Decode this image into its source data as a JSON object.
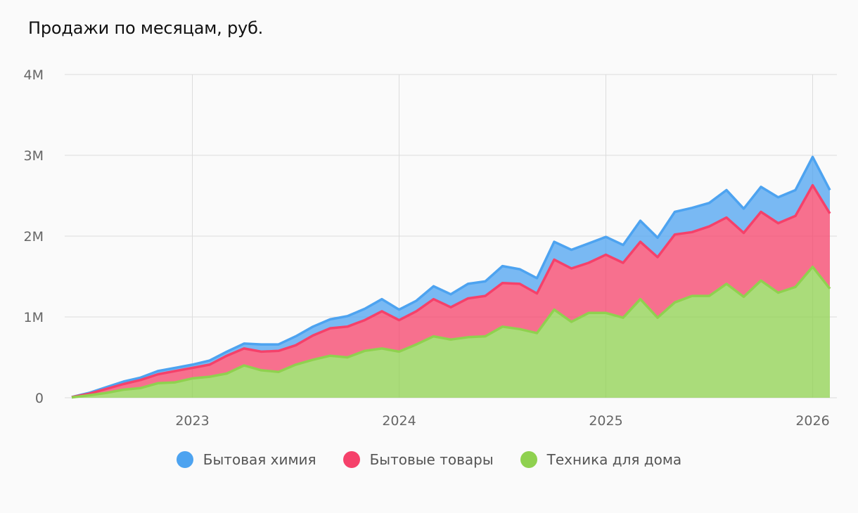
{
  "chart_data": {
    "type": "area",
    "stacked": true,
    "title": "Продажи по месяцам, руб.",
    "xlabel": "",
    "ylabel": "",
    "ylim": [
      0,
      4000000
    ],
    "yticks": [
      {
        "value": 0,
        "label": "0"
      },
      {
        "value": 1000000,
        "label": "1M"
      },
      {
        "value": 2000000,
        "label": "2M"
      },
      {
        "value": 3000000,
        "label": "3M"
      },
      {
        "value": 4000000,
        "label": "4M"
      }
    ],
    "xlim": [
      "2022-06",
      "2026-02"
    ],
    "xticks": [
      {
        "value": "2023-01",
        "label": "2023"
      },
      {
        "value": "2024-01",
        "label": "2024"
      },
      {
        "value": "2025-01",
        "label": "2025"
      },
      {
        "value": "2026-01",
        "label": "2026"
      }
    ],
    "grid": true,
    "legend_position": "bottom",
    "x": [
      "2022-06",
      "2022-07",
      "2022-08",
      "2022-09",
      "2022-10",
      "2022-11",
      "2022-12",
      "2023-01",
      "2023-02",
      "2023-03",
      "2023-04",
      "2023-05",
      "2023-06",
      "2023-07",
      "2023-08",
      "2023-09",
      "2023-10",
      "2023-11",
      "2023-12",
      "2024-01",
      "2024-02",
      "2024-03",
      "2024-04",
      "2024-05",
      "2024-06",
      "2024-07",
      "2024-08",
      "2024-09",
      "2024-10",
      "2024-11",
      "2024-12",
      "2025-01",
      "2025-02",
      "2025-03",
      "2025-04",
      "2025-05",
      "2025-06",
      "2025-07",
      "2025-08",
      "2025-09",
      "2025-10",
      "2025-11",
      "2025-12",
      "2026-01",
      "2026-02"
    ],
    "series": [
      {
        "name": "Бытовая химия",
        "color": "#4da3f0",
        "totals": [
          10000,
          60000,
          130000,
          200000,
          250000,
          330000,
          370000,
          410000,
          460000,
          570000,
          670000,
          660000,
          660000,
          760000,
          880000,
          970000,
          1010000,
          1100000,
          1220000,
          1090000,
          1200000,
          1380000,
          1280000,
          1410000,
          1440000,
          1630000,
          1590000,
          1480000,
          1930000,
          1830000,
          1910000,
          1990000,
          1890000,
          2190000,
          1980000,
          2300000,
          2350000,
          2410000,
          2570000,
          2340000,
          2610000,
          2480000,
          2570000,
          2980000,
          2570000
        ],
        "values": [
          2000,
          10000,
          20000,
          30000,
          30000,
          40000,
          40000,
          40000,
          50000,
          50000,
          60000,
          90000,
          80000,
          120000,
          110000,
          110000,
          130000,
          140000,
          150000,
          130000,
          130000,
          160000,
          160000,
          180000,
          180000,
          210000,
          180000,
          190000,
          220000,
          230000,
          240000,
          220000,
          220000,
          270000,
          240000,
          280000,
          300000,
          290000,
          340000,
          300000,
          310000,
          320000,
          320000,
          350000,
          290000
        ]
      },
      {
        "name": "Бытовые товары",
        "color": "#f5416a",
        "totals": [
          8000,
          50000,
          110000,
          170000,
          220000,
          290000,
          330000,
          370000,
          410000,
          520000,
          610000,
          570000,
          580000,
          650000,
          770000,
          860000,
          880000,
          960000,
          1070000,
          960000,
          1070000,
          1220000,
          1120000,
          1230000,
          1260000,
          1420000,
          1410000,
          1290000,
          1710000,
          1600000,
          1670000,
          1770000,
          1670000,
          1930000,
          1740000,
          2020000,
          2050000,
          2120000,
          2230000,
          2040000,
          2300000,
          2160000,
          2250000,
          2630000,
          2280000
        ],
        "values": [
          4000,
          20000,
          50000,
          70000,
          100000,
          110000,
          140000,
          130000,
          150000,
          220000,
          210000,
          230000,
          260000,
          240000,
          300000,
          340000,
          380000,
          380000,
          460000,
          390000,
          410000,
          460000,
          400000,
          480000,
          500000,
          540000,
          560000,
          490000,
          620000,
          660000,
          620000,
          720000,
          680000,
          710000,
          750000,
          840000,
          790000,
          860000,
          820000,
          790000,
          850000,
          860000,
          880000,
          1010000,
          930000
        ]
      },
      {
        "name": "Техника для дома",
        "color": "#8fd14f",
        "totals": [
          4000,
          30000,
          60000,
          100000,
          120000,
          180000,
          190000,
          240000,
          260000,
          300000,
          400000,
          340000,
          320000,
          410000,
          470000,
          520000,
          500000,
          580000,
          610000,
          570000,
          660000,
          760000,
          720000,
          750000,
          760000,
          880000,
          850000,
          800000,
          1090000,
          940000,
          1050000,
          1050000,
          990000,
          1220000,
          990000,
          1180000,
          1260000,
          1260000,
          1410000,
          1250000,
          1450000,
          1300000,
          1370000,
          1620000,
          1350000
        ],
        "values": [
          4000,
          30000,
          60000,
          100000,
          120000,
          180000,
          190000,
          240000,
          260000,
          300000,
          400000,
          340000,
          320000,
          410000,
          470000,
          520000,
          500000,
          580000,
          610000,
          570000,
          660000,
          760000,
          720000,
          750000,
          760000,
          880000,
          850000,
          800000,
          1090000,
          940000,
          1050000,
          1050000,
          990000,
          1220000,
          990000,
          1180000,
          1260000,
          1260000,
          1410000,
          1250000,
          1450000,
          1300000,
          1370000,
          1620000,
          1350000
        ]
      }
    ]
  }
}
